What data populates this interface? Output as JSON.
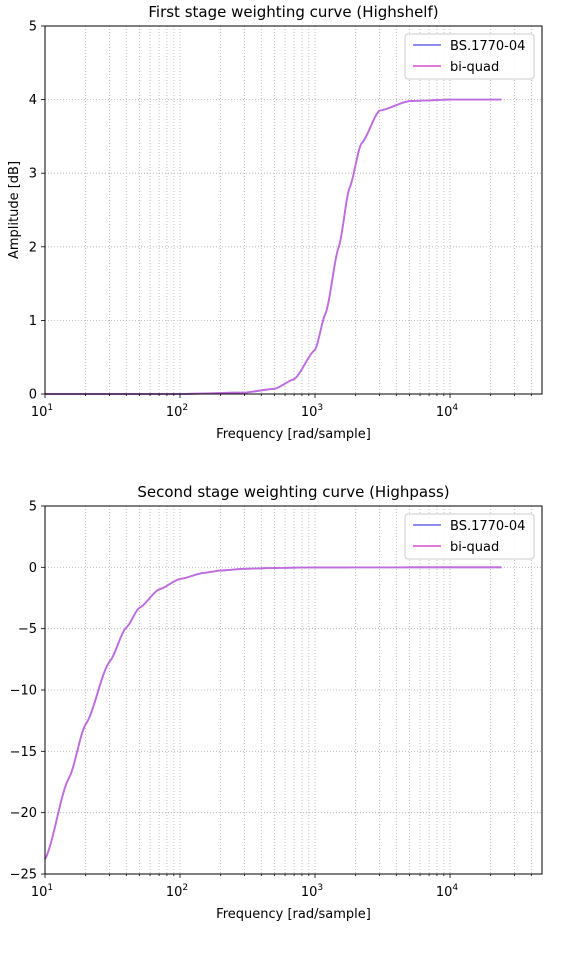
{
  "chart_data": [
    {
      "type": "line",
      "title": "First stage weighting curve (Highshelf)",
      "xlabel": "Frequency [rad/sample]",
      "ylabel": "Amplitude [dB]",
      "xscale": "log",
      "xlim": [
        10,
        48000
      ],
      "ylim": [
        0,
        5
      ],
      "xticks": [
        {
          "base": "10",
          "exp": "1"
        },
        {
          "base": "10",
          "exp": "2"
        },
        {
          "base": "10",
          "exp": "3"
        },
        {
          "base": "10",
          "exp": "4"
        }
      ],
      "yticks": [
        "0",
        "1",
        "2",
        "3",
        "4",
        "5"
      ],
      "ytick_values": [
        0,
        1,
        2,
        3,
        4,
        5
      ],
      "grid": true,
      "legend": "top-right",
      "series": [
        {
          "name": "BS.1770-04",
          "color": "#7b7bea",
          "x": [
            10,
            100,
            300,
            500,
            700,
            1000,
            1200,
            1500,
            1800,
            2200,
            3000,
            5000,
            10000,
            24000
          ],
          "y": [
            0,
            0,
            0.02,
            0.07,
            0.2,
            0.6,
            1.1,
            2.0,
            2.8,
            3.4,
            3.85,
            3.98,
            4.0,
            4.0
          ]
        },
        {
          "name": "bi-quad",
          "color": "#d966d9",
          "x": [
            10,
            100,
            300,
            500,
            700,
            1000,
            1200,
            1500,
            1800,
            2200,
            3000,
            5000,
            10000,
            24000
          ],
          "y": [
            0,
            0,
            0.02,
            0.07,
            0.2,
            0.6,
            1.1,
            2.0,
            2.8,
            3.4,
            3.85,
            3.98,
            4.0,
            4.0
          ]
        }
      ]
    },
    {
      "type": "line",
      "title": "Second stage weighting curve (Highpass)",
      "xlabel": "Frequency [rad/sample]",
      "ylabel": "",
      "xscale": "log",
      "xlim": [
        10,
        48000
      ],
      "ylim": [
        -25,
        5
      ],
      "xticks": [
        {
          "base": "10",
          "exp": "1"
        },
        {
          "base": "10",
          "exp": "2"
        },
        {
          "base": "10",
          "exp": "3"
        },
        {
          "base": "10",
          "exp": "4"
        }
      ],
      "yticks": [
        "5",
        "0",
        "−5",
        "−10",
        "−15",
        "−20",
        "−25"
      ],
      "ytick_values": [
        5,
        0,
        -5,
        -10,
        -15,
        -20,
        -25
      ],
      "grid": true,
      "legend": "top-right",
      "series": [
        {
          "name": "BS.1770-04",
          "color": "#7b7bea",
          "x": [
            10,
            15,
            20,
            30,
            40,
            50,
            70,
            100,
            150,
            200,
            300,
            500,
            1000,
            5000,
            24000
          ],
          "y": [
            -23.8,
            -17.2,
            -12.8,
            -7.7,
            -4.9,
            -3.3,
            -1.8,
            -0.95,
            -0.45,
            -0.26,
            -0.12,
            -0.05,
            -0.01,
            0,
            0
          ]
        },
        {
          "name": "bi-quad",
          "color": "#d966d9",
          "x": [
            10,
            15,
            20,
            30,
            40,
            50,
            70,
            100,
            150,
            200,
            300,
            500,
            1000,
            5000,
            24000
          ],
          "y": [
            -23.8,
            -17.2,
            -12.8,
            -7.7,
            -4.9,
            -3.3,
            -1.8,
            -0.95,
            -0.45,
            -0.26,
            -0.12,
            -0.05,
            -0.01,
            0,
            0
          ]
        }
      ]
    }
  ]
}
